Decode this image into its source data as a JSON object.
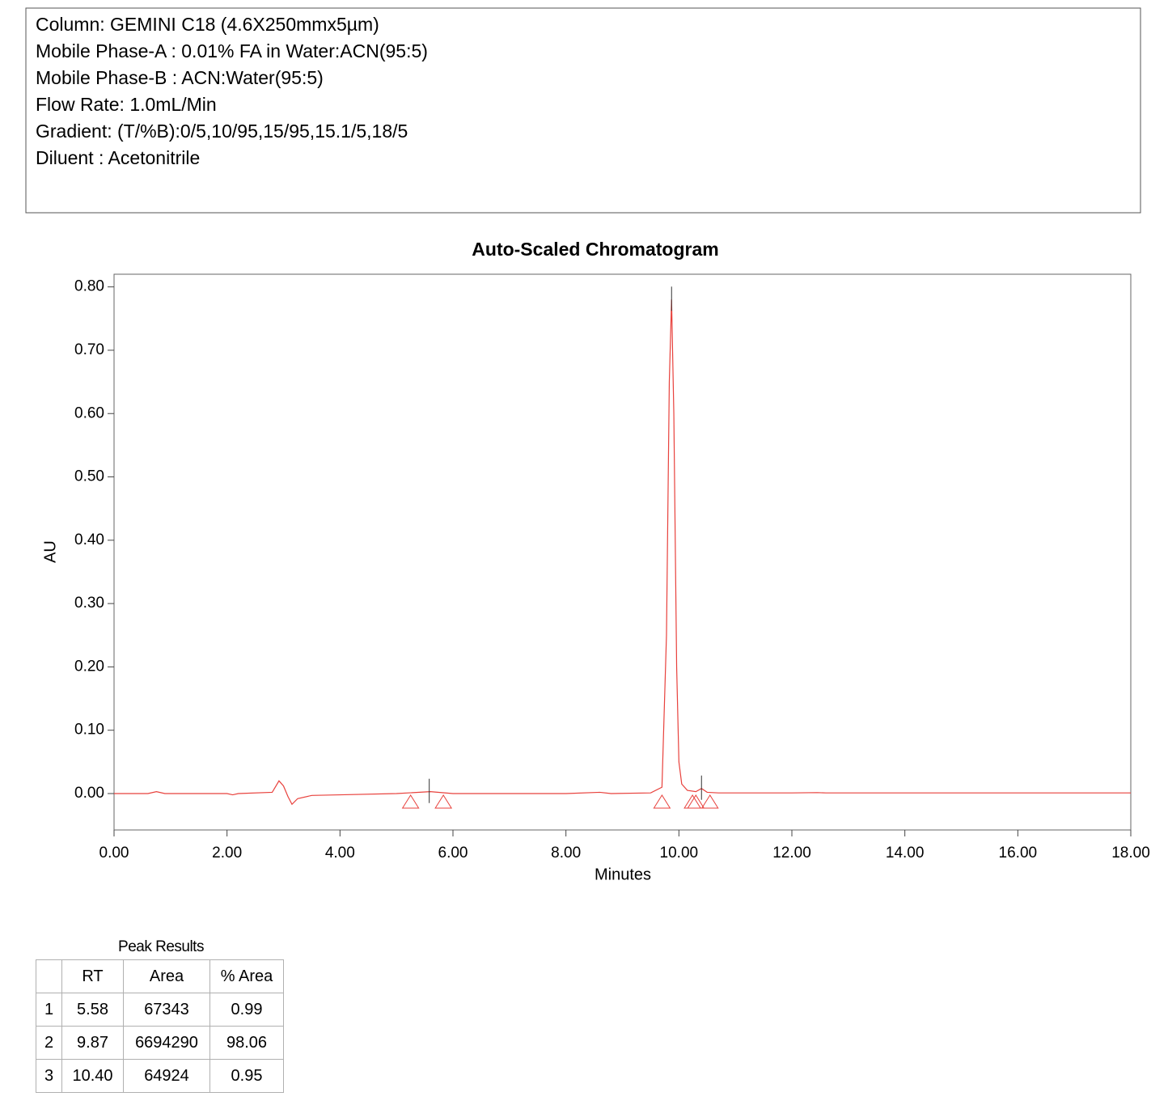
{
  "header": {
    "lines": [
      "Column: GEMINI C18 (4.6X250mmx5µm)",
      "Mobile Phase-A : 0.01% FA  in Water:ACN(95:5)",
      "Mobile Phase-B : ACN:Water(95:5)",
      "Flow Rate: 1.0mL/Min",
      "Gradient: (T/%B):0/5,10/95,15/95,15.1/5,18/5",
      "Diluent : Acetonitrile"
    ]
  },
  "chart_data": {
    "type": "line",
    "title": "Auto-Scaled Chromatogram",
    "x_label": "Minutes",
    "y_label": "AU",
    "color": "#e8413c",
    "x": [
      0,
      0.6,
      0.75,
      0.9,
      1.5,
      2.0,
      2.1,
      2.2,
      2.8,
      2.92,
      3.0,
      3.08,
      3.15,
      3.25,
      3.5,
      4.0,
      5.0,
      5.6,
      6.0,
      7.0,
      8.0,
      8.6,
      8.8,
      9.5,
      9.7,
      9.78,
      9.83,
      9.87,
      9.91,
      9.96,
      10.0,
      10.05,
      10.15,
      10.3,
      10.4,
      10.5,
      10.7,
      12.0,
      12.45,
      12.6,
      18.0
    ],
    "values": [
      0,
      0,
      0.003,
      0,
      0,
      0,
      -0.002,
      0,
      0.002,
      0.02,
      0.012,
      -0.005,
      -0.017,
      -0.008,
      -0.003,
      -0.002,
      0,
      0.003,
      0,
      0,
      0,
      0.002,
      0,
      0.001,
      0.01,
      0.25,
      0.65,
      0.78,
      0.6,
      0.2,
      0.05,
      0.015,
      0.005,
      0.003,
      0.008,
      0.002,
      0.001,
      0.001,
      0.0015,
      0.001,
      0.001
    ],
    "peak_ticks": [
      5.58,
      9.87,
      10.4
    ],
    "peak_boundaries": [
      5.25,
      5.83,
      9.7,
      10.24,
      10.3,
      10.55
    ],
    "xlim": [
      0,
      18
    ],
    "ylim": [
      -0.0575,
      0.82
    ],
    "xticks": [
      {
        "value": 0,
        "label": "0.00"
      },
      {
        "value": 2,
        "label": "2.00"
      },
      {
        "value": 4,
        "label": "4.00"
      },
      {
        "value": 6,
        "label": "6.00"
      },
      {
        "value": 8,
        "label": "8.00"
      },
      {
        "value": 10,
        "label": "10.00"
      },
      {
        "value": 12,
        "label": "12.00"
      },
      {
        "value": 14,
        "label": "14.00"
      },
      {
        "value": 16,
        "label": "16.00"
      },
      {
        "value": 18,
        "label": "18.00"
      }
    ],
    "yticks": [
      {
        "value": 0,
        "label": "0.00"
      },
      {
        "value": 0.1,
        "label": "0.10"
      },
      {
        "value": 0.2,
        "label": "0.20"
      },
      {
        "value": 0.3,
        "label": "0.30"
      },
      {
        "value": 0.4,
        "label": "0.40"
      },
      {
        "value": 0.5,
        "label": "0.50"
      },
      {
        "value": 0.6,
        "label": "0.60"
      },
      {
        "value": 0.7,
        "label": "0.70"
      },
      {
        "value": 0.8,
        "label": "0.80"
      }
    ]
  },
  "table": {
    "title": "Peak Results",
    "columns": [
      "RT",
      "Area",
      "% Area"
    ],
    "rows": [
      [
        "1",
        "5.58",
        "67343",
        "0.99"
      ],
      [
        "2",
        "9.87",
        "6694290",
        "98.06"
      ],
      [
        "3",
        "10.40",
        "64924",
        "0.95"
      ]
    ]
  }
}
